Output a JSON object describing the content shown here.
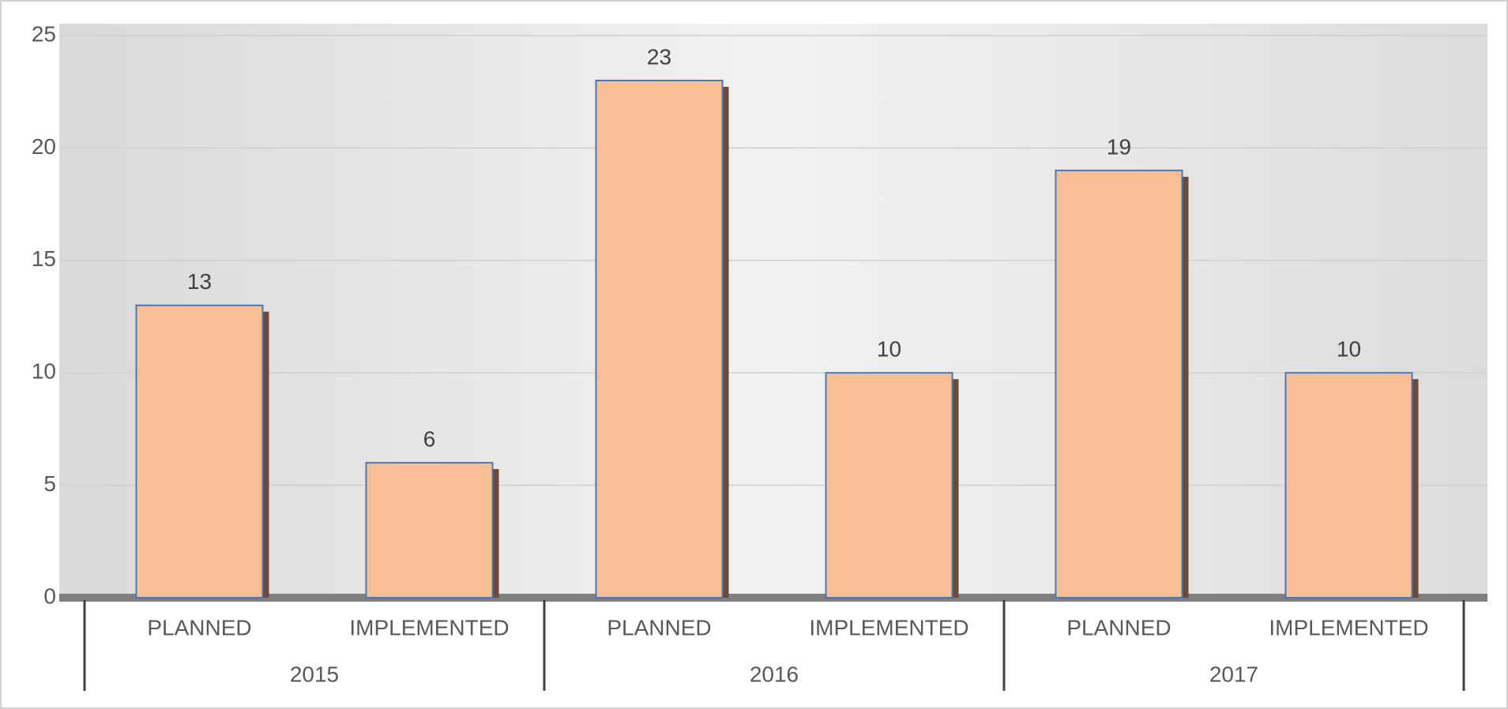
{
  "chart_data": {
    "type": "bar",
    "categories": [
      "PLANNED",
      "IMPLEMENTED",
      "PLANNED",
      "IMPLEMENTED",
      "PLANNED",
      "IMPLEMENTED"
    ],
    "groups": [
      "2015",
      "2016",
      "2017"
    ],
    "values": [
      13,
      6,
      23,
      10,
      19,
      10
    ],
    "color": "#f8bf94",
    "edge_color": "#4a78b8",
    "ylim": [
      0,
      25
    ],
    "yticks": [
      0,
      5,
      10,
      15,
      20,
      25
    ],
    "grid": true
  }
}
